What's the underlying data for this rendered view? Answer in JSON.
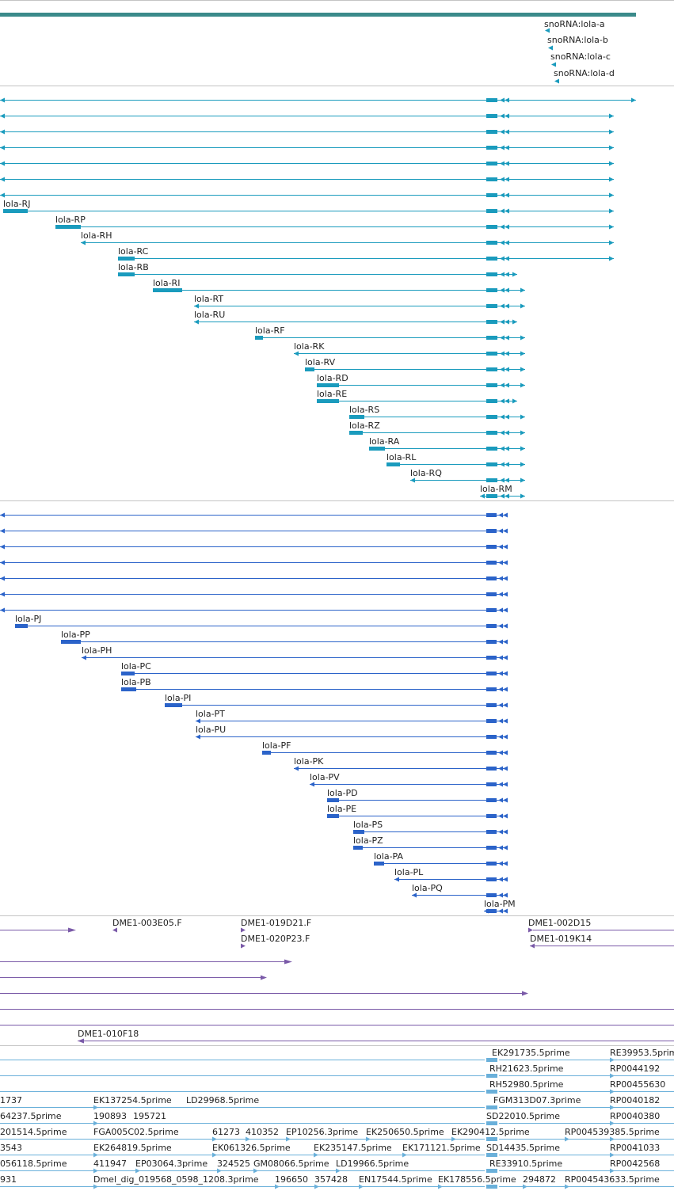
{
  "colors": {
    "gene_bar": "#3a8a8a",
    "transcript": "#1a9bbd",
    "protein": "#2b63c9",
    "clone": "#7a5aa8",
    "est": "#6ab0da",
    "separator": "#c4c4c4"
  },
  "snorna": [
    "snoRNA:lola-a",
    "snoRNA:lola-b",
    "snoRNA:lola-c",
    "snoRNA:lola-d"
  ],
  "transcripts": [
    "lola-RJ",
    "lola-RP",
    "lola-RH",
    "lola-RC",
    "lola-RB",
    "lola-RI",
    "lola-RT",
    "lola-RU",
    "lola-RF",
    "lola-RK",
    "lola-RV",
    "lola-RD",
    "lola-RE",
    "lola-RS",
    "lola-RZ",
    "lola-RA",
    "lola-RL",
    "lola-RQ",
    "lola-RM"
  ],
  "proteins": [
    "lola-PJ",
    "lola-PP",
    "lola-PH",
    "lola-PC",
    "lola-PB",
    "lola-PI",
    "lola-PT",
    "lola-PU",
    "lola-PF",
    "lola-PK",
    "lola-PV",
    "lola-PD",
    "lola-PE",
    "lola-PS",
    "lola-PZ",
    "lola-PA",
    "lola-PL",
    "lola-PQ",
    "lola-PM"
  ],
  "clones": [
    "DME1-003E05.F",
    "DME1-019D21.F",
    "DME1-020P23.F",
    "DME1-002D15",
    "DME1-019K14",
    "DME1-010F18"
  ],
  "ests": [
    "EK291735.5prime",
    "RE39953.5prim",
    "RH21623.5prime",
    "RP0044192",
    "RH52980.5prime",
    "RP00455630",
    "1737",
    "EK137254.5prime",
    "LD29968.5prime",
    "FGM313D07.3prime",
    "RP0040182",
    "64237.5prime",
    "190893",
    "195721",
    "SD22010.5prime",
    "RP0040380",
    "201514.5prime",
    "FGA005C02.5prime",
    "61273",
    "410352",
    "EP10256.3prime",
    "EK250650.5prime",
    "EK290412.5prime",
    "RP004539385.5prime",
    "RP0041033",
    "3543",
    "EK264819.5prime",
    "EK061326.5prime",
    "EK235147.5prime",
    "EK171121.5prime",
    "SD14435.5prime",
    "RP0042568",
    "056118.5prime",
    "411947",
    "EP03064.3prime",
    "324525",
    "GM08066.5prime",
    "LD19966.5prime",
    "RE33910.5prime",
    "931",
    "Dmel_dig_019568_0598_1208.3prime",
    "196650",
    "357428",
    "EN17544.5prime",
    "EK178556.5prime",
    "294872",
    "RP004543633.5prime"
  ]
}
